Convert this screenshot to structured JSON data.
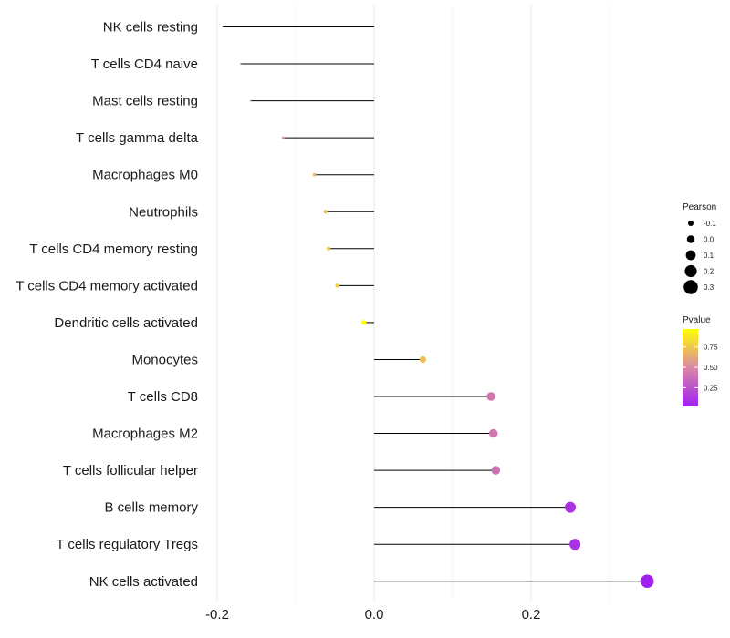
{
  "chart_data": {
    "type": "lollipop",
    "title": "",
    "xlabel": "",
    "ylabel": "",
    "xlim": [
      -0.2,
      0.35
    ],
    "x_ticks": [
      -0.2,
      0.0,
      0.2
    ],
    "x_tick_labels": [
      "-0.2",
      "0.0",
      "0.2"
    ],
    "grid": true,
    "categories": [
      "NK cells resting",
      "T cells CD4 naive",
      "Mast cells resting",
      "T cells gamma delta",
      "Macrophages M0",
      "Neutrophils",
      "T cells CD4 memory resting",
      "T cells CD4 memory activated",
      "Dendritic cells activated",
      "Monocytes",
      "T cells CD8",
      "Macrophages M2",
      "T cells follicular helper",
      "B cells memory",
      "T cells regulatory  Tregs",
      "NK cells activated"
    ],
    "pearson": [
      -0.193,
      -0.17,
      -0.157,
      -0.116,
      -0.076,
      -0.062,
      -0.058,
      -0.047,
      -0.013,
      0.062,
      0.149,
      0.152,
      0.155,
      0.25,
      0.256,
      0.348
    ],
    "pvalue": [
      0.1,
      0.2,
      0.3,
      0.55,
      0.7,
      0.72,
      0.75,
      0.78,
      0.97,
      0.72,
      0.42,
      0.42,
      0.4,
      0.1,
      0.1,
      0.02
    ],
    "legend_size": {
      "title": "Pearson",
      "values": [
        -0.1,
        0.0,
        0.1,
        0.2,
        0.3
      ],
      "labels": [
        "-0.1",
        "0.0",
        "0.1",
        "0.2",
        "0.3"
      ]
    },
    "legend_color": {
      "title": "Pvalue",
      "range": [
        0.02,
        0.97
      ],
      "ticks": [
        0.25,
        0.5,
        0.75
      ],
      "tick_labels": [
        "0.25",
        "0.50",
        "0.75"
      ],
      "colors": {
        "low": "#a020f0",
        "mid": "#d987a6",
        "high": "#ffff00"
      }
    },
    "legend_position": "right",
    "stem_color": "#000000",
    "grid_color": "#ebebeb"
  }
}
